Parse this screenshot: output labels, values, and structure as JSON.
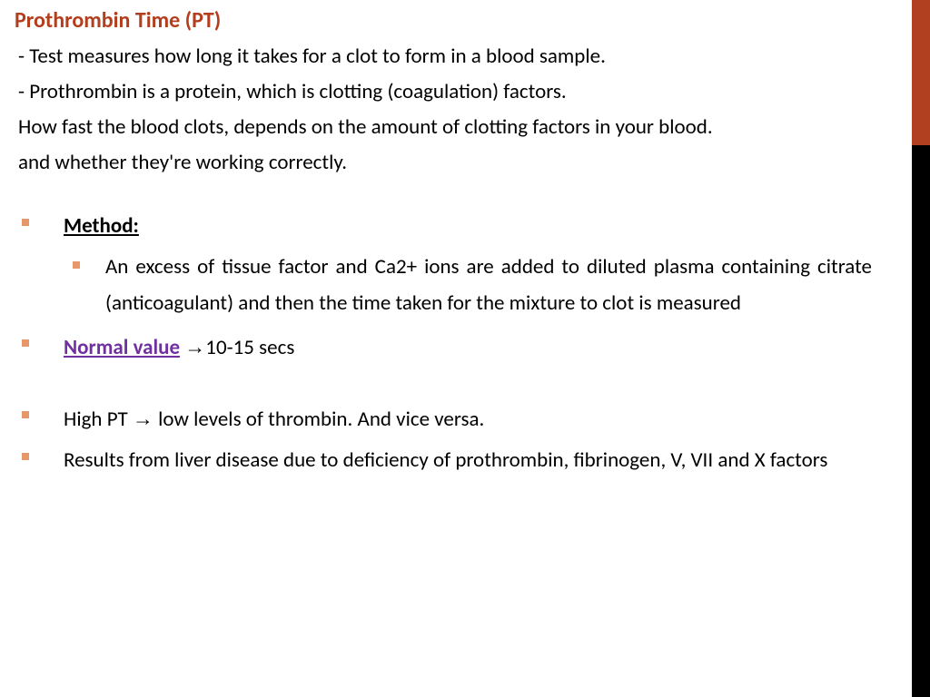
{
  "colors": {
    "title": "#b33e1e",
    "normal_value": "#7030a0",
    "text": "#000000",
    "bullet": "#e8976a",
    "side_orange": "#b04020",
    "side_black": "#000000"
  },
  "title": "Prothrombin Time (PT)",
  "intro": [
    " - Test measures how long it takes for a clot to form in a blood sample.",
    "- Prothrombin is a protein, which is clotting (coagulation) factors.",
    "How fast the blood clots, depends on the amount of clotting factors in your blood.",
    "and whether they're working correctly."
  ],
  "method_label": "Method:",
  "method_text": "An excess of tissue factor and Ca2+ ions are added to diluted plasma containing citrate (anticoagulant) and then the time taken for the mixture to clot is measured",
  "normal_value_label": "Normal value",
  "normal_value_arrow": "→",
  "normal_value_text": "10-15 secs",
  "high_pt_prefix": "High PT ",
  "high_pt_arrow": "→",
  "high_pt_suffix": " low levels of thrombin. And vice versa.",
  "results_text": "Results from liver disease due to deficiency of prothrombin, fibrinogen, V, VII and X factors"
}
